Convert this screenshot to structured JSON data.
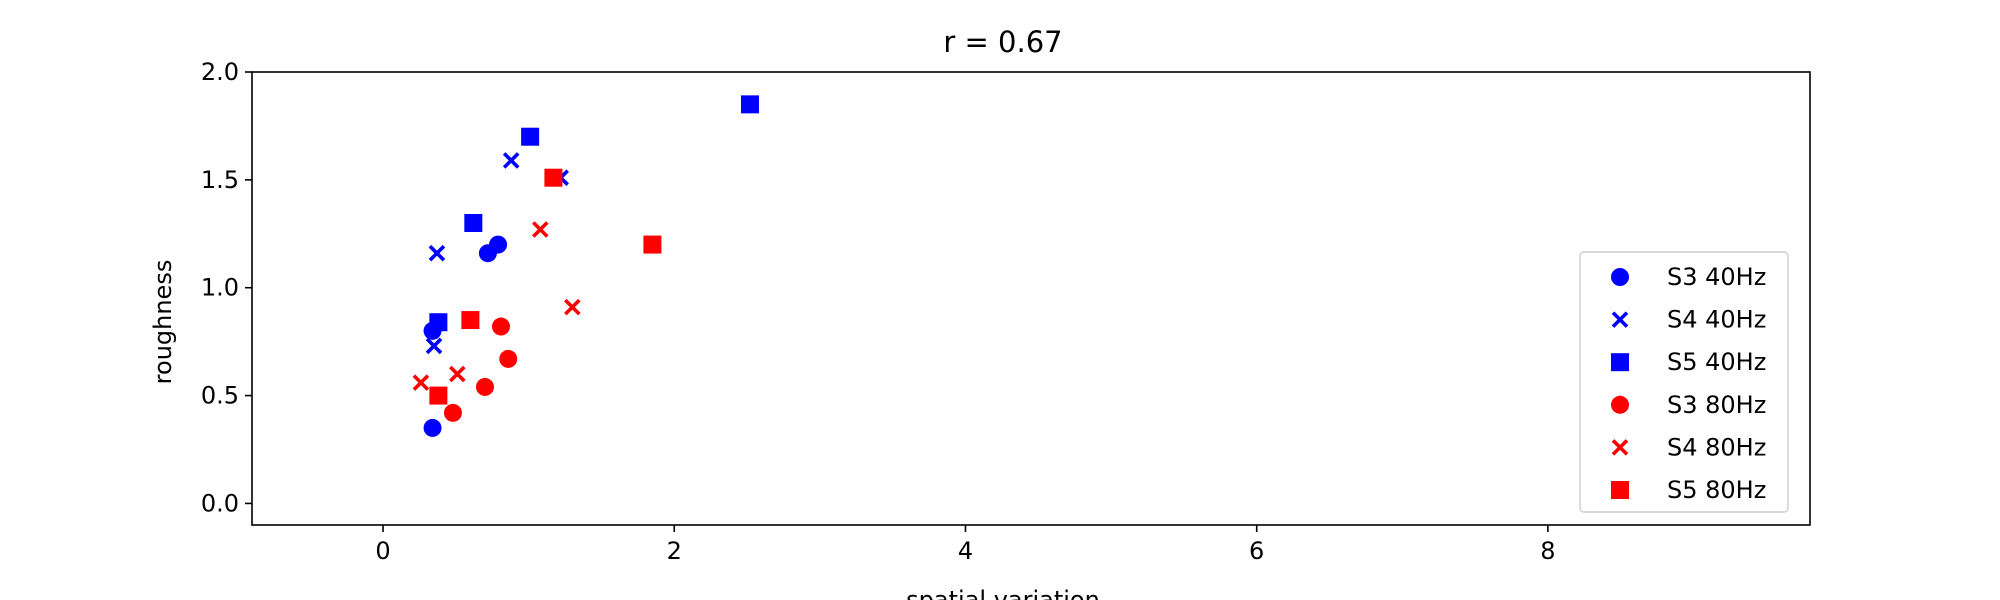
{
  "chart_data": {
    "type": "scatter",
    "title": "r = 0.67",
    "xlabel": "spatial variation",
    "ylabel": "roughness",
    "xlim": [
      -0.9,
      9.8
    ],
    "ylim": [
      -0.1,
      2.0
    ],
    "x_ticks": [
      0,
      2,
      4,
      6,
      8
    ],
    "y_ticks": [
      0.0,
      0.5,
      1.0,
      1.5,
      2.0
    ],
    "x_tick_labels": [
      "0",
      "2",
      "4",
      "6",
      "8"
    ],
    "y_tick_labels": [
      "0.0",
      "0.5",
      "1.0",
      "1.5",
      "2.0"
    ],
    "grid": false,
    "legend_position": "lower-right",
    "series": [
      {
        "name": "S3 40Hz",
        "color": "#0000ff",
        "marker": "circle",
        "x": [
          0.34,
          0.34,
          0.72,
          0.79
        ],
        "y": [
          0.35,
          0.8,
          1.16,
          1.2
        ]
      },
      {
        "name": "S4 40Hz",
        "color": "#0000ff",
        "marker": "x",
        "x": [
          0.35,
          0.37,
          0.88,
          1.22
        ],
        "y": [
          0.73,
          1.16,
          1.59,
          1.51
        ]
      },
      {
        "name": "S5 40Hz",
        "color": "#0000ff",
        "marker": "square",
        "x": [
          0.38,
          0.62,
          1.01,
          2.52
        ],
        "y": [
          0.84,
          1.3,
          1.7,
          1.85
        ]
      },
      {
        "name": "S3 80Hz",
        "color": "#ff0000",
        "marker": "circle",
        "x": [
          0.48,
          0.7,
          0.81,
          0.86
        ],
        "y": [
          0.42,
          0.54,
          0.82,
          0.67
        ]
      },
      {
        "name": "S4 80Hz",
        "color": "#ff0000",
        "marker": "x",
        "x": [
          0.26,
          0.51,
          1.08,
          1.3
        ],
        "y": [
          0.56,
          0.6,
          1.27,
          0.91
        ]
      },
      {
        "name": "S5 80Hz",
        "color": "#ff0000",
        "marker": "square",
        "x": [
          0.38,
          0.6,
          1.17,
          1.85
        ],
        "y": [
          0.5,
          0.85,
          1.51,
          1.2
        ]
      }
    ]
  }
}
